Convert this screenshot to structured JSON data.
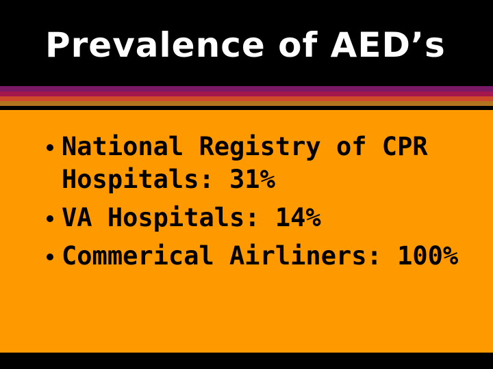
{
  "slide": {
    "title": "Prevalence of AED’s",
    "bullets": [
      "National Registry of CPR Hospitals:  31%",
      "VA Hospitals: 14%",
      "Commerical Airliners: 100%"
    ],
    "colors": {
      "title_background": "#000000",
      "title_text": "#ffffff",
      "content_background": "#ff9900",
      "content_text": "#000000",
      "stripe_colors": [
        "#7a1a66",
        "#a4184e",
        "#ce4a2a",
        "#b2741e"
      ]
    },
    "icons": {
      "bullet": "filled-circle-icon"
    }
  }
}
